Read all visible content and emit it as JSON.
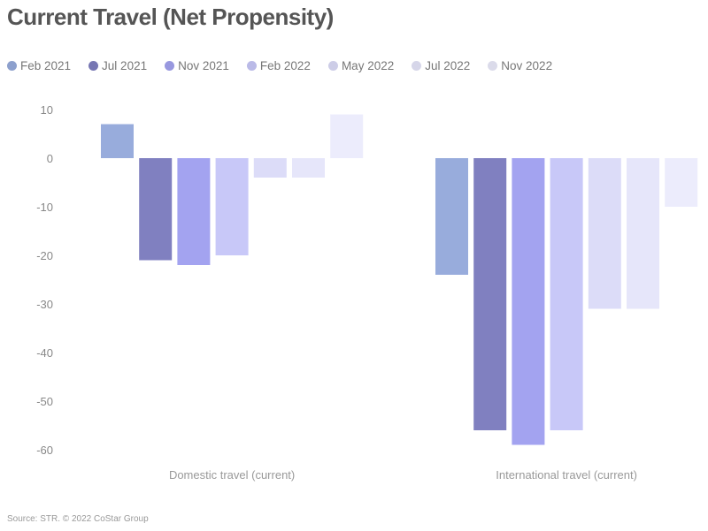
{
  "title": "Current Travel (Net Propensity)",
  "source": "Source: STR. © 2022 CoStar Group",
  "chart_data": {
    "type": "bar",
    "title": "Current Travel (Net Propensity)",
    "categories": [
      "Domestic travel (current)",
      "International travel (current)"
    ],
    "series": [
      {
        "name": "Feb 2021",
        "color": "#98acdc",
        "values": [
          7,
          -24
        ]
      },
      {
        "name": "Jul 2021",
        "color": "#8080c0",
        "values": [
          -21,
          -56
        ]
      },
      {
        "name": "Nov 2021",
        "color": "#a3a3f0",
        "values": [
          -22,
          -59
        ]
      },
      {
        "name": "Feb 2022",
        "color": "#c8c8f8",
        "values": [
          -20,
          -56
        ]
      },
      {
        "name": "May 2022",
        "color": "#dcdcf8",
        "values": [
          -4,
          -31
        ]
      },
      {
        "name": "Jul 2022",
        "color": "#e6e6fa",
        "values": [
          -4,
          -31
        ]
      },
      {
        "name": "Nov 2022",
        "color": "#ececfc",
        "values": [
          9,
          -10
        ]
      }
    ],
    "yticks": [
      10,
      0,
      -10,
      -20,
      -30,
      -40,
      -50,
      -60
    ],
    "ylim": [
      -60,
      10
    ],
    "grid": false,
    "legend_position": "top-left"
  }
}
